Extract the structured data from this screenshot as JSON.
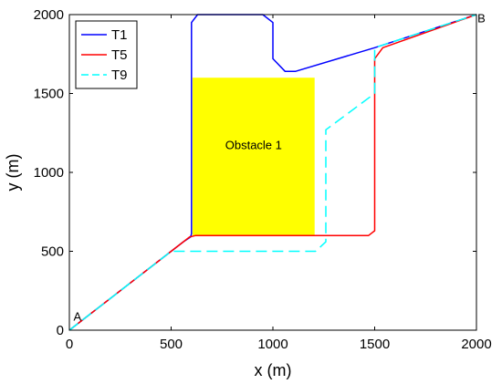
{
  "chart_data": {
    "type": "line",
    "xlabel": "x (m)",
    "ylabel": "y (m)",
    "xlim": [
      0,
      2000
    ],
    "ylim": [
      0,
      2000
    ],
    "xticks": [
      0,
      500,
      1000,
      1500,
      2000
    ],
    "yticks": [
      0,
      500,
      1000,
      1500,
      2000
    ],
    "grid": false,
    "legend_position": "top-left",
    "obstacle": {
      "label": "Obstacle 1",
      "x": [
        605,
        1205
      ],
      "y": [
        600,
        1600
      ],
      "color": "#ffff00"
    },
    "annotations": [
      {
        "text": "A",
        "x": 20,
        "y": 60
      },
      {
        "text": "B",
        "x": 2005,
        "y": 1950
      }
    ],
    "series": [
      {
        "name": "T1",
        "color": "#0000ff",
        "style": "solid",
        "points": [
          [
            0,
            0
          ],
          [
            560,
            560
          ],
          [
            595,
            590
          ],
          [
            600,
            610
          ],
          [
            600,
            1950
          ],
          [
            630,
            2000
          ],
          [
            950,
            2000
          ],
          [
            1000,
            1950
          ],
          [
            1000,
            1720
          ],
          [
            1060,
            1640
          ],
          [
            1110,
            1640
          ],
          [
            1500,
            1790
          ],
          [
            2000,
            2000
          ]
        ]
      },
      {
        "name": "T5",
        "color": "#ff0000",
        "style": "solid",
        "points": [
          [
            0,
            0
          ],
          [
            560,
            560
          ],
          [
            590,
            590
          ],
          [
            620,
            600
          ],
          [
            1470,
            600
          ],
          [
            1500,
            630
          ],
          [
            1500,
            1720
          ],
          [
            1540,
            1790
          ],
          [
            2000,
            2000
          ]
        ]
      },
      {
        "name": "T9",
        "color": "#00ffff",
        "style": "dashed",
        "points": [
          [
            0,
            0
          ],
          [
            500,
            500
          ],
          [
            1210,
            500
          ],
          [
            1260,
            560
          ],
          [
            1260,
            1270
          ],
          [
            1500,
            1500
          ],
          [
            1500,
            1790
          ],
          [
            2000,
            2000
          ]
        ]
      }
    ]
  }
}
